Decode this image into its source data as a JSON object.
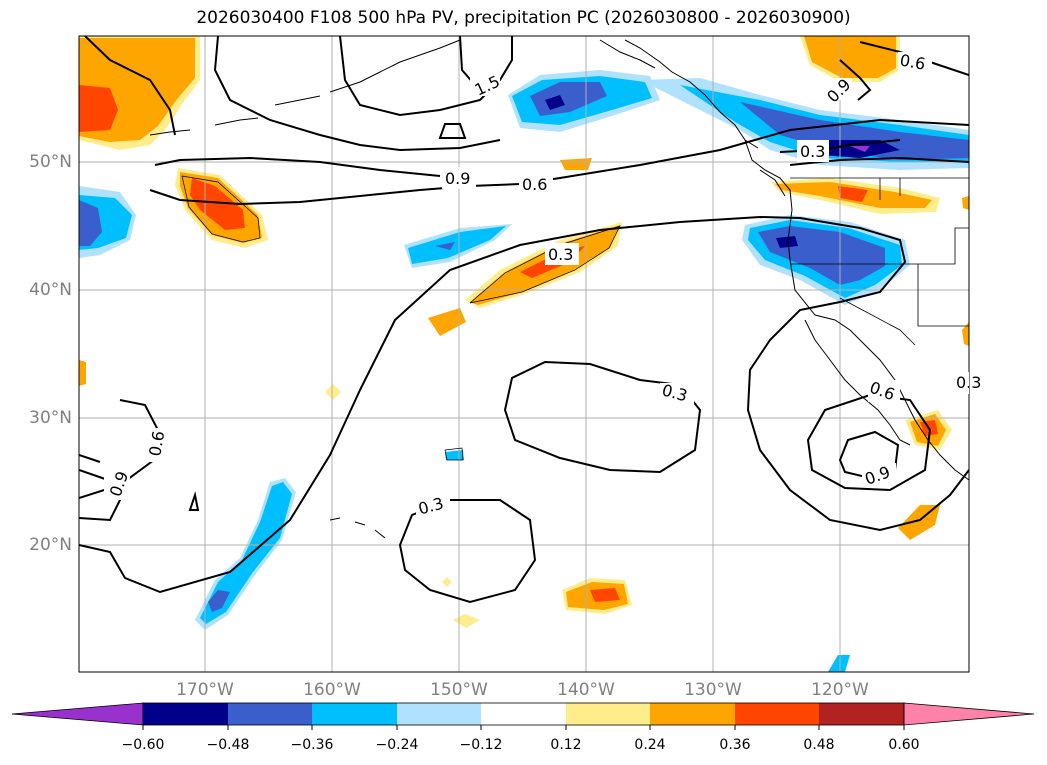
{
  "title": "2026030400 F108 500 hPa PV, precipitation PC (2026030800 - 2026030900)",
  "lat_labels": [
    "50°N",
    "40°N",
    "30°N",
    "20°N"
  ],
  "lon_labels": [
    "170°W",
    "160°W",
    "150°W",
    "140°W",
    "130°W",
    "120°W"
  ],
  "contour_labels": [
    "1.5",
    "0.9",
    "0.6",
    "0.3",
    "0.6",
    "0.9",
    "0.3",
    "0.3",
    "0.6",
    "0.9",
    "0.9",
    "0.6",
    "0.3",
    "0.3"
  ],
  "colorbar": {
    "labels": [
      "−0.60",
      "−0.48",
      "−0.36",
      "−0.24",
      "−0.12",
      "0.12",
      "0.24",
      "0.36",
      "0.48",
      "0.60"
    ],
    "colors": [
      "#9932cc",
      "#00008b",
      "#3a5fcd",
      "#00bfff",
      "#b0e2ff",
      "#ffffff",
      "#ffec8b",
      "#ffa500",
      "#ff4500",
      "#b22222",
      "#ff82ab"
    ]
  }
}
